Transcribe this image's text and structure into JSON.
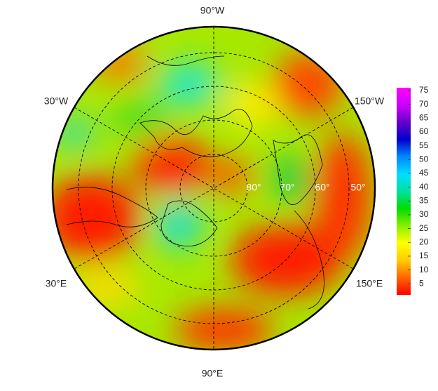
{
  "map": {
    "lon_labels": [
      "90°W",
      "30°W",
      "150°W",
      "30°E",
      "150°E",
      "90°E"
    ],
    "lat_labels": [
      "80°",
      "70°",
      "60°",
      "50°"
    ]
  },
  "colorbar": {
    "ticks": [
      5,
      10,
      15,
      20,
      25,
      30,
      35,
      40,
      45,
      50,
      55,
      60,
      65,
      70,
      75
    ],
    "lim": [
      1,
      76
    ],
    "colors": [
      "#ff0000",
      "#ff6600",
      "#ffcc00",
      "#ffff00",
      "#88ee00",
      "#00dd00",
      "#00e0a0",
      "#00ddff",
      "#0088ff",
      "#0000cc",
      "#6600cc",
      "#cc00ff",
      "#ff00ff"
    ]
  }
}
